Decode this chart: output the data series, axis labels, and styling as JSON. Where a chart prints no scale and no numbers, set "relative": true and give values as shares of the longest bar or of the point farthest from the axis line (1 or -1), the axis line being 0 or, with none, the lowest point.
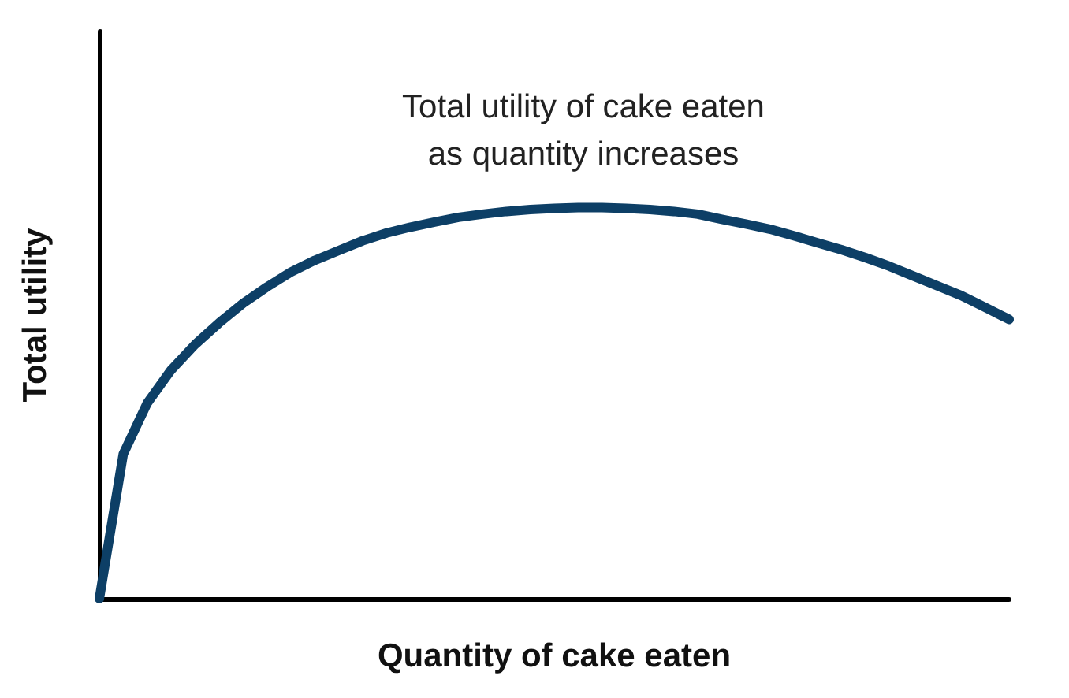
{
  "chart_data": {
    "type": "line",
    "title": "Total utility of cake eaten\nas quantity increases",
    "xlabel": "Quantity of cake eaten",
    "ylabel": "Total utility",
    "relative": true,
    "grid": false,
    "marker": "none",
    "line_style": "solid",
    "categories": [
      null,
      null,
      null,
      null,
      null,
      null,
      null,
      null,
      null,
      null,
      null,
      null,
      null,
      null,
      null,
      null,
      null,
      null,
      null,
      null,
      null,
      null,
      null,
      null,
      null,
      null,
      null,
      null,
      null,
      null,
      null,
      null,
      null,
      null,
      null,
      null,
      null,
      null,
      null
    ],
    "series": [
      {
        "color": "#0d3f66",
        "values": [
          0,
          0.37,
          0.5,
          0.585,
          0.65,
          0.705,
          0.755,
          0.797,
          0.835,
          0.865,
          0.89,
          0.915,
          0.935,
          0.95,
          0.963,
          0.975,
          0.983,
          0.99,
          0.995,
          0.998,
          1,
          1,
          0.998,
          0.995,
          0.99,
          0.983,
          0.97,
          0.958,
          0.945,
          0.928,
          0.91,
          0.892,
          0.872,
          0.85,
          0.825,
          0.8,
          0.775,
          0.745,
          0.714
        ]
      }
    ]
  }
}
